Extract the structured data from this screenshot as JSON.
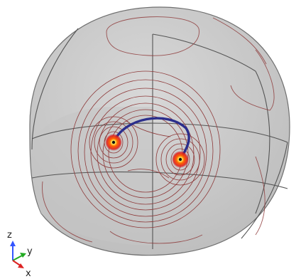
{
  "axes": {
    "z": "z",
    "y": "y",
    "x": "x"
  },
  "colors": {
    "background": "#ffffff",
    "sphere_fill": "#c9c9c9",
    "sphere_edge": "#6f6f6f",
    "contour": "#8e3a3a",
    "hot_core": "#ffff66",
    "hot_mid": "#ff3300",
    "arc": "#2b2e8c",
    "axis_z": "#3355ff",
    "axis_y": "#22aa22",
    "axis_x": "#dd2222"
  },
  "icons": {
    "triad": "xyz-axis-triad-icon"
  }
}
